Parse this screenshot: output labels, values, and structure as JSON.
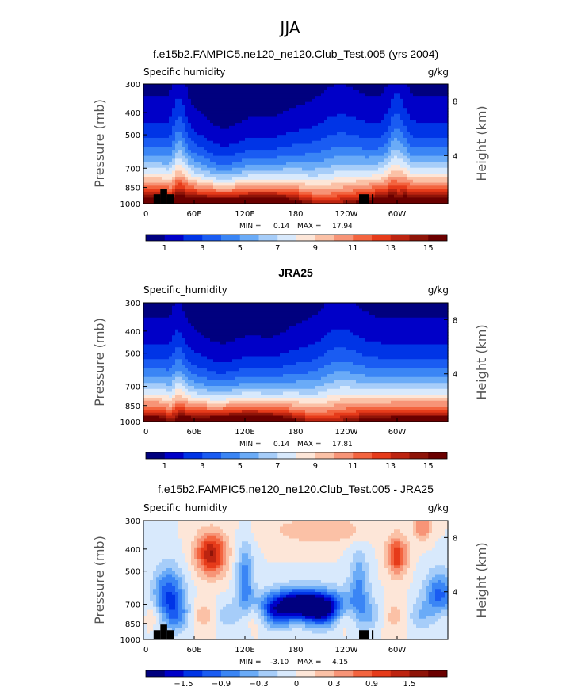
{
  "figure": {
    "season": "JJA",
    "colors": {
      "full_field": [
        "#00007f",
        "#0000c8",
        "#0034e6",
        "#1a5cf2",
        "#3a85f5",
        "#6aabf7",
        "#a6cdf9",
        "#d8e9fc",
        "#fde6d8",
        "#fbc1a6",
        "#f79477",
        "#f3643f",
        "#e63b1a",
        "#bd2410",
        "#8e1408",
        "#6b0000"
      ],
      "difference": [
        "#00007f",
        "#0000c8",
        "#0034e6",
        "#1a5cf2",
        "#3a85f5",
        "#6aabf7",
        "#a6cdf9",
        "#d8e9fc",
        "#fde6d8",
        "#fbc1a6",
        "#f79477",
        "#f3643f",
        "#e63b1a",
        "#bd2410",
        "#8e1408",
        "#6b0000"
      ]
    }
  },
  "chart_data": [
    {
      "type": "heatmap",
      "title": "f.e15b2.FAMPIC5.ne120_ne120.Club_Test.005 (yrs 2004)",
      "left_label": "Specific humidity",
      "units": "g/kg",
      "ylabel": "Pressure (mb)",
      "y2label": "Height (km)",
      "ylim": [
        1000,
        300
      ],
      "yticks": [
        "300",
        "400",
        "500",
        "700",
        "850",
        "1000"
      ],
      "y2ticks": [
        "8",
        "4"
      ],
      "xlim": [
        0,
        360
      ],
      "xticks": [
        "0",
        "60E",
        "120E",
        "180",
        "120W",
        "60W"
      ],
      "min_label": "MIN =",
      "min": "0.14",
      "max_label": "MAX =",
      "max": "17.94",
      "colorbar_labels": [
        "1",
        "3",
        "5",
        "7",
        "9",
        "11",
        "13",
        "15"
      ],
      "colorbar_min": 0,
      "colorbar_max": 16,
      "palette": "full_field",
      "field": "model",
      "topography": "model"
    },
    {
      "type": "heatmap",
      "title": "JRA25",
      "left_label": "Specific_humidity",
      "units": "g/kg",
      "ylabel": "Pressure (mb)",
      "y2label": "Height (km)",
      "ylim": [
        1000,
        300
      ],
      "yticks": [
        "300",
        "400",
        "500",
        "700",
        "850",
        "1000"
      ],
      "y2ticks": [
        "8",
        "4"
      ],
      "xlim": [
        0,
        360
      ],
      "xticks": [
        "0",
        "60E",
        "120E",
        "180",
        "120W",
        "60W"
      ],
      "min_label": "MIN =",
      "min": "0.14",
      "max_label": "MAX =",
      "max": "17.81",
      "colorbar_labels": [
        "1",
        "3",
        "5",
        "7",
        "9",
        "11",
        "13",
        "15"
      ],
      "colorbar_min": 0,
      "colorbar_max": 16,
      "palette": "full_field",
      "field": "obs",
      "topography": "none"
    },
    {
      "type": "heatmap",
      "title": "f.e15b2.FAMPIC5.ne120_ne120.Club_Test.005 - JRA25",
      "left_label": "Specific_humidity",
      "units": "g/kg",
      "ylabel": "Pressure (mb)",
      "y2label": "Height (km)",
      "ylim": [
        1000,
        300
      ],
      "yticks": [
        "300",
        "400",
        "500",
        "700",
        "850",
        "1000"
      ],
      "y2ticks": [
        "8",
        "4"
      ],
      "xlim": [
        0,
        360
      ],
      "xticks": [
        "0",
        "60E",
        "120E",
        "180",
        "120W",
        "60W"
      ],
      "min_label": "MIN =",
      "min": "-3.10",
      "max_label": "MAX =",
      "max": "4.15",
      "colorbar_labels": [
        "−1.5",
        "−0.9",
        "−0.3",
        "0",
        "0.3",
        "0.9",
        "1.5"
      ],
      "colorbar_min": -2.1,
      "colorbar_max": 2.1,
      "palette": "difference",
      "field": "diff",
      "topography": "model"
    }
  ]
}
